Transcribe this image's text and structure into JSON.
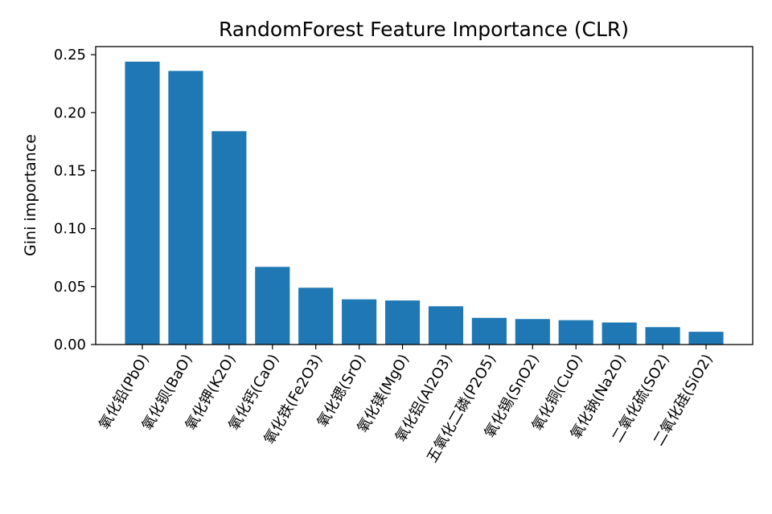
{
  "chart_data": {
    "type": "bar",
    "title": "RandomForest Feature Importance (CLR)",
    "xlabel": "",
    "ylabel": "Gini importance",
    "categories": [
      "氧化铅(PbO)",
      "氧化钡(BaO)",
      "氧化钾(K2O)",
      "氧化钙(CaO)",
      "氧化铁(Fe2O3)",
      "氧化锶(SrO)",
      "氧化镁(MgO)",
      "氧化铝(Al2O3)",
      "五氧化二磷(P2O5)",
      "氧化锡(SnO2)",
      "氧化铜(CuO)",
      "氧化钠(Na2O)",
      "二氧化硫(SO2)",
      "二氧化硅(SiO2)"
    ],
    "values": [
      0.244,
      0.236,
      0.184,
      0.067,
      0.049,
      0.039,
      0.038,
      0.033,
      0.023,
      0.022,
      0.021,
      0.019,
      0.015,
      0.011
    ],
    "ylim": [
      0,
      0.257
    ],
    "yticks": [
      0.0,
      0.05,
      0.1,
      0.15,
      0.2,
      0.25
    ],
    "ytick_labels": [
      "0.00",
      "0.05",
      "0.10",
      "0.15",
      "0.20",
      "0.25"
    ],
    "bar_color": "#1f77b4",
    "grid": false,
    "legend": "none"
  }
}
